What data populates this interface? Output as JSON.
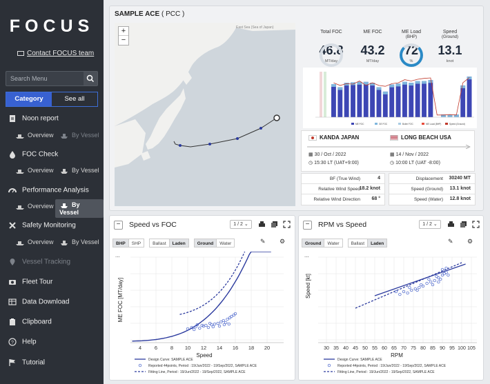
{
  "brand": {
    "logo": "FOCUS",
    "contact": "Contact FOCUS team"
  },
  "search": {
    "placeholder": "Search Menu"
  },
  "category_tabs": [
    "Category",
    "See all"
  ],
  "menu": {
    "noon_report": "Noon report",
    "foc_check": "FOC Check",
    "performance": "Performance Analysis",
    "safety": "Safety Monitoring",
    "vessel_tracking": "Vessel Tracking",
    "fleet_tour": "Fleet Tour",
    "data_download": "Data Download",
    "clipboard": "Clipboard",
    "help": "Help",
    "tutorial": "Tutorial",
    "overview": "Overview",
    "by_vessel": "By Vessel"
  },
  "vessel": {
    "name": "SAMPLE ACE",
    "type": "( PCC )"
  },
  "map_labels": {
    "country": "East Sea (Sea of Japan)",
    "zoom_in": "+",
    "zoom_out": "−"
  },
  "kpis": [
    {
      "label": "Total FOC",
      "value": "46.8",
      "unit": "MT/day"
    },
    {
      "label": "ME FOC",
      "value": "43.2",
      "unit": "MT/day"
    },
    {
      "label": "ME Load",
      "sub": "(BHP)",
      "value": "72",
      "unit": "%"
    },
    {
      "label": "Speed",
      "sub": "(Ground)",
      "value": "13.1",
      "unit": "knot"
    }
  ],
  "voyage": {
    "from_port": "KANDA JAPAN",
    "to_port": "LONG BEACH USA",
    "from_date": "30 / Oct / 2022",
    "from_time": "15:30 LT (UAT+9:00)",
    "to_date": "14 / Nov / 2022",
    "to_time": "10:00 LT (UAT -8:00)"
  },
  "conditions_left": [
    {
      "k": "BF (True Wind)",
      "v": "4"
    },
    {
      "k": "Relative Wind Speed",
      "v": "18.2 knot"
    },
    {
      "k": "Relative Wind Direction",
      "v": "68 °"
    }
  ],
  "conditions_right": [
    {
      "k": "Displacement",
      "v": "30240 MT"
    },
    {
      "k": "Speed (Ground)",
      "v": "13.1 knot"
    },
    {
      "k": "Speed (Water)",
      "v": "12.8 knot"
    }
  ],
  "speed_foc": {
    "title": "Speed vs FOC",
    "pager": "1 / 2",
    "toggles": [
      "BHP",
      "SHP",
      "Ballast",
      "Laden",
      "Ground",
      "Water"
    ],
    "ylabel": "ME FOC [MT/day]",
    "xlabel": "Speed",
    "xticks": [
      "4",
      "6",
      "8",
      "10",
      "12",
      "14",
      "16",
      "18",
      "20"
    ],
    "legend": [
      "Design Curve: SAMPLE ACE",
      "Reported 44points, Period : 19/Jun/2022 - 19/Sep/2022, SAMPLE ACE",
      "Fitting Line, Period : 19/Jun/2022 - 19/Sep/2022, SAMPLE ACE"
    ],
    "more": "..."
  },
  "rpm_speed": {
    "title": "RPM vs Speed",
    "pager": "1 / 2",
    "toggles": [
      "Ground",
      "Water",
      "Ballast",
      "Laden"
    ],
    "ylabel": "Speed [kt]",
    "xlabel": "RPM",
    "xticks": [
      "30",
      "35",
      "40",
      "45",
      "50",
      "55",
      "60",
      "65",
      "70",
      "75",
      "80",
      "85",
      "90",
      "95",
      "100",
      "105"
    ],
    "legend": [
      "Design Curve: SAMPLE ACE",
      "Reported 44points, Period : 19/Jun/2022 - 19/Sep/2022, SAMPLE ACE",
      "Fitting Line, Period : 19/Jun/2022 - 19/Sep/2022, SAMPLE ACE"
    ],
    "more": "..."
  },
  "mini_chart": {
    "legend": [
      "ME FOC",
      "GE FOC",
      "Boiler FOC",
      "ME Load (BHP)",
      "Speed (Ground)"
    ],
    "bars": [
      0.75,
      0.68,
      0.78,
      0.79,
      0.8,
      0.8,
      0.78,
      0.68,
      0.58,
      0.74,
      0.76,
      0.8,
      0.78,
      0.82,
      0.82,
      0.84,
      0.0,
      0.06,
      0.06,
      0.06,
      0.72,
      0.92
    ],
    "speed_line": [
      0.78,
      0.72,
      0.76,
      0.75,
      0.82,
      0.72,
      0.78,
      0.72,
      0.7,
      0.76,
      0.78,
      0.85,
      0.82,
      0.86,
      0.88,
      0.89,
      0.05,
      0.05,
      0.06,
      0.05,
      0.78,
      0.9
    ]
  },
  "colors": {
    "accent": "#3861d1",
    "series": "#2b3a9e",
    "sidebar": "#2c3037"
  }
}
